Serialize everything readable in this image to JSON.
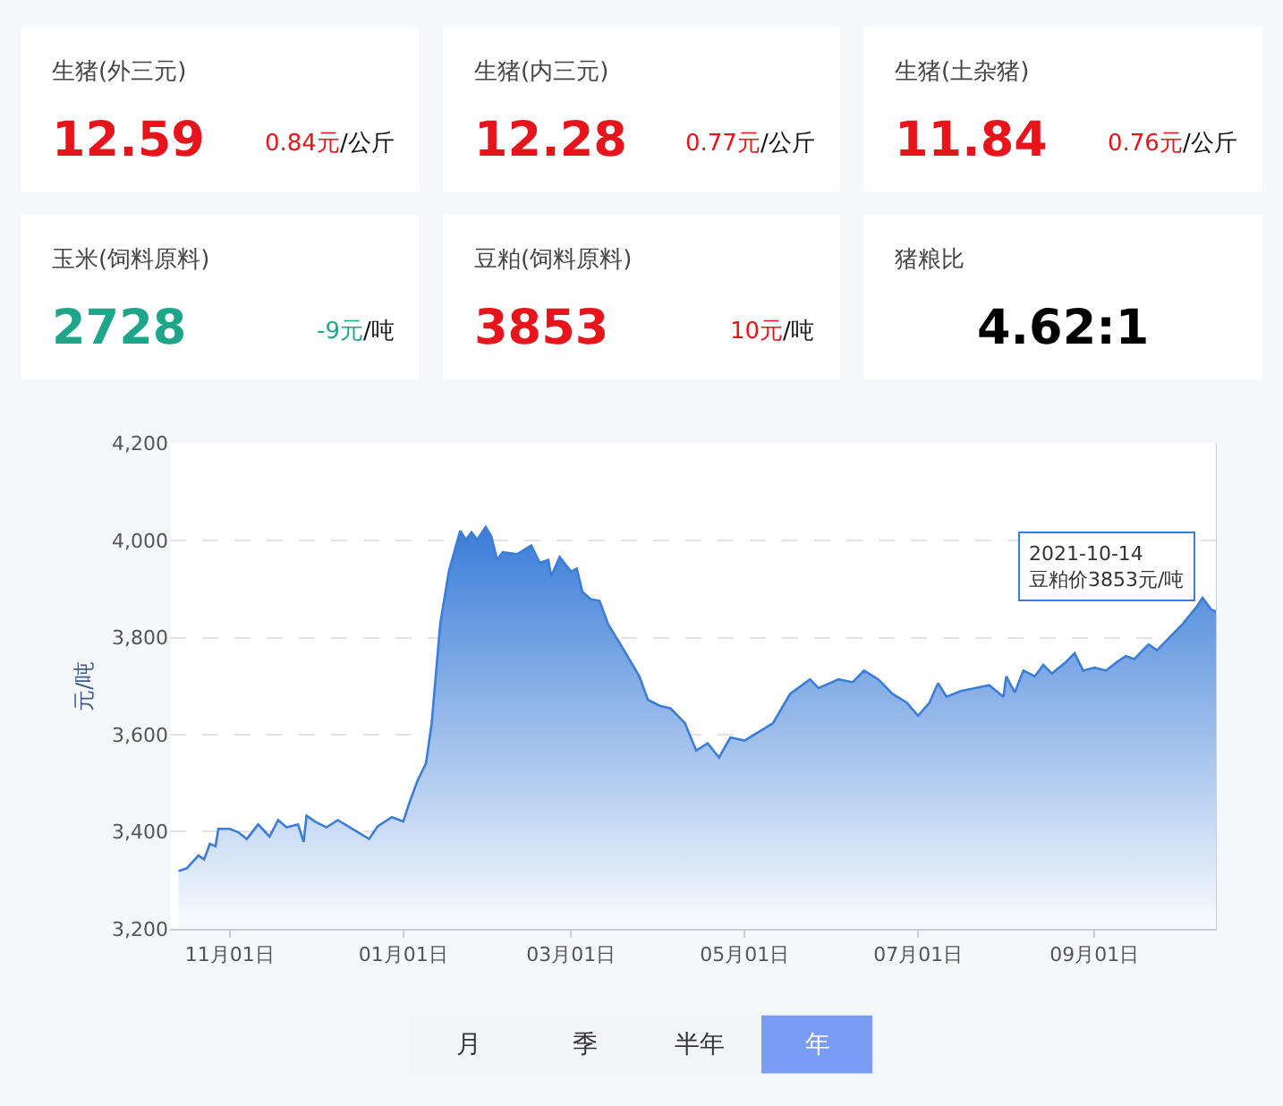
{
  "chart_data": [
    {
      "type": "other",
      "categories": [
        "生猪(外三元)",
        "生猪(内三元)",
        "生猪(土杂猪)",
        "玉米(饲料原料)",
        "豆粕(饲料原料)",
        "猪粮比"
      ],
      "value_labels": [
        "12.59",
        "12.28",
        "11.84",
        "2728",
        "3853",
        "4.62:1"
      ],
      "annotations": [
        "0.84元/公斤",
        "0.77元/公斤",
        "0.76元/公斤",
        "-9元/吨",
        "10元/吨"
      ]
    },
    {
      "type": "area",
      "ylabel": "元/吨",
      "grid": "y",
      "marker": "none",
      "line_style": "solid",
      "x": [
        "2020-10-14",
        "2020-10-17",
        "2020-10-21",
        "2020-10-23",
        "2020-10-25",
        "2020-10-27",
        "2020-10-28",
        "2020-11-01",
        "2020-11-04",
        "2020-11-07",
        "2020-11-11",
        "2020-11-15",
        "2020-11-18",
        "2020-11-21",
        "2020-11-25",
        "2020-11-27",
        "2020-11-28",
        "2020-12-01",
        "2020-12-05",
        "2020-12-09",
        "2020-12-14",
        "2020-12-20",
        "2020-12-23",
        "2020-12-28",
        "2021-01-01",
        "2021-01-03",
        "2021-01-06",
        "2021-01-09",
        "2021-01-11",
        "2021-01-14",
        "2021-01-17",
        "2021-01-21",
        "2021-01-23",
        "2021-01-25",
        "2021-01-27",
        "2021-01-30",
        "2021-02-01",
        "2021-02-03",
        "2021-02-05",
        "2021-02-10",
        "2021-02-15",
        "2021-02-18",
        "2021-02-21",
        "2021-02-22",
        "2021-02-25",
        "2021-03-01",
        "2021-03-03",
        "2021-03-05",
        "2021-03-08",
        "2021-03-11",
        "2021-03-14",
        "2021-03-19",
        "2021-03-25",
        "2021-03-28",
        "2021-04-01",
        "2021-04-05",
        "2021-04-10",
        "2021-04-14",
        "2021-04-18",
        "2021-04-22",
        "2021-04-26",
        "2021-05-01",
        "2021-05-06",
        "2021-05-11",
        "2021-05-17",
        "2021-05-24",
        "2021-05-27",
        "2021-06-03",
        "2021-06-08",
        "2021-06-12",
        "2021-06-17",
        "2021-06-22",
        "2021-06-27",
        "2021-07-01",
        "2021-07-05",
        "2021-07-08",
        "2021-07-11",
        "2021-07-16",
        "2021-07-21",
        "2021-07-26",
        "2021-07-31",
        "2021-08-01",
        "2021-08-04",
        "2021-08-07",
        "2021-08-11",
        "2021-08-14",
        "2021-08-17",
        "2021-08-22",
        "2021-08-25",
        "2021-08-28",
        "2021-09-01",
        "2021-09-05",
        "2021-09-09",
        "2021-09-12",
        "2021-09-15",
        "2021-09-20",
        "2021-09-23",
        "2021-09-27",
        "2021-10-02",
        "2021-10-07",
        "2021-10-09",
        "2021-10-12",
        "2021-10-14"
      ],
      "series": [
        {
          "color": "#3b7dd8",
          "values": [
            3319,
            3325,
            3351,
            3343,
            3375,
            3370,
            3406,
            3406,
            3399,
            3385,
            3415,
            3390,
            3424,
            3409,
            3415,
            3379,
            3433,
            3421,
            3409,
            3424,
            3406,
            3385,
            3411,
            3430,
            3421,
            3457,
            3505,
            3541,
            3624,
            3828,
            3936,
            4020,
            4002,
            4017,
            4002,
            4028,
            4008,
            3960,
            3976,
            3972,
            3990,
            3954,
            3960,
            3927,
            3966,
            3936,
            3942,
            3894,
            3879,
            3876,
            3828,
            3780,
            3720,
            3672,
            3660,
            3654,
            3624,
            3567,
            3582,
            3553,
            3594,
            3588,
            3606,
            3624,
            3684,
            3714,
            3696,
            3714,
            3708,
            3732,
            3714,
            3684,
            3666,
            3639,
            3666,
            3706,
            3678,
            3690,
            3696,
            3702,
            3678,
            3720,
            3687,
            3732,
            3720,
            3744,
            3726,
            3750,
            3768,
            3732,
            3738,
            3732,
            3750,
            3762,
            3756,
            3786,
            3774,
            3798,
            3828,
            3864,
            3882,
            3858,
            3853
          ]
        }
      ],
      "xlim": [
        "2020-10-11",
        "2021-10-14"
      ],
      "xticks": [
        {
          "value": "2020-11-01",
          "label": "11月01日"
        },
        {
          "value": "2021-01-01",
          "label": "01月01日"
        },
        {
          "value": "2021-03-01",
          "label": "03月01日"
        },
        {
          "value": "2021-05-01",
          "label": "05月01日"
        },
        {
          "value": "2021-07-01",
          "label": "07月01日"
        },
        {
          "value": "2021-09-01",
          "label": "09月01日"
        }
      ],
      "ylim": [
        3200,
        4200
      ],
      "yticks": [
        {
          "value": 3200,
          "label": "3,200"
        },
        {
          "value": 3400,
          "label": "3,400"
        },
        {
          "value": 3600,
          "label": "3,600"
        },
        {
          "value": 3800,
          "label": "3,800"
        },
        {
          "value": 4000,
          "label": "4,000"
        },
        {
          "value": 4200,
          "label": "4,200"
        }
      ],
      "ref_lines": [
        {
          "axis": "x",
          "value": "2021-10-14",
          "label": null,
          "color": "#c8ccd6"
        }
      ],
      "annotations": [
        {
          "text": "2021-10-14\n豆粕价3853元/吨",
          "x": "2021-10-14",
          "y": 3853
        },
        "月",
        "季",
        "半年",
        "年"
      ]
    }
  ]
}
